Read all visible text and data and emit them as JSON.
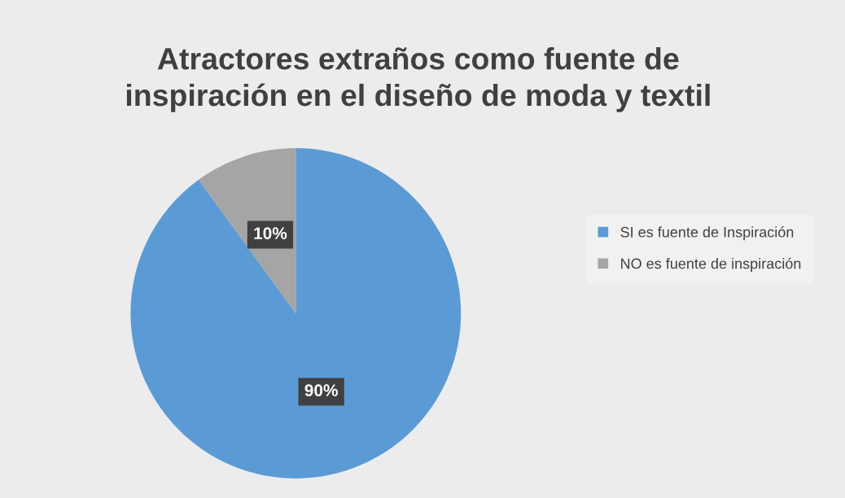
{
  "chart_data": {
    "type": "pie",
    "title": "Atractores extraños como fuente de\ninspiración en el diseño de moda y textil",
    "categories": [
      "SI es fuente de Inspiración",
      "NO es fuente de inspiración"
    ],
    "values": [
      90,
      10
    ],
    "colors": [
      "#5b9bd5",
      "#a5a5a5"
    ],
    "value_labels": [
      "90%",
      "10%"
    ],
    "legend": "right"
  }
}
